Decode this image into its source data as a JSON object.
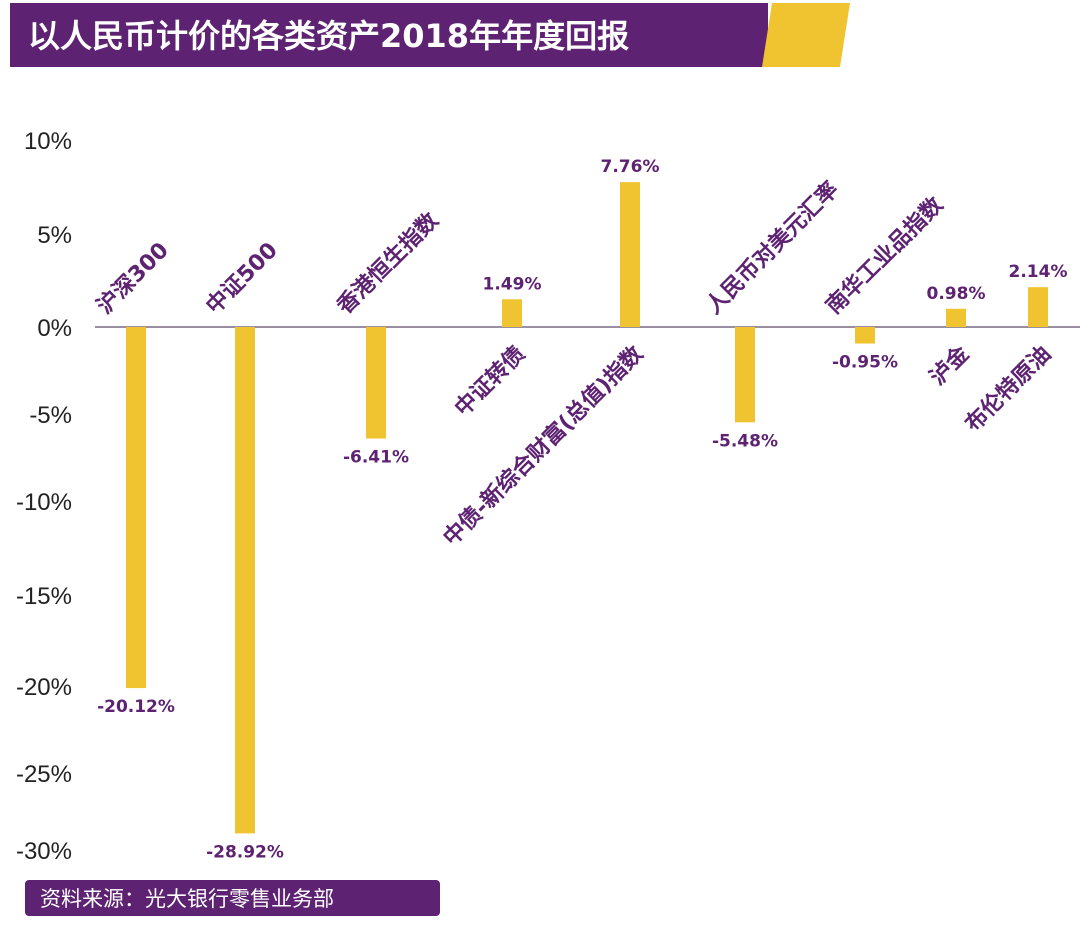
{
  "header": {
    "title": "以人民币计价的各类资产2018年年度回报"
  },
  "footer": {
    "source": "资料来源：光大银行零售业务部"
  },
  "colors": {
    "purple": "#5d2271",
    "bar": "#f0c330",
    "axis": "#9a8fa0"
  },
  "chart_data": {
    "type": "bar",
    "title": "以人民币计价的各类资产2018年年度回报",
    "categories": [
      "沪深300",
      "中证500",
      "香港恒生指数",
      "中证转债",
      "中债-新综合财富(总值)指数",
      "人民币对美元汇率",
      "南华工业品指数",
      "泸金",
      "布伦特原油"
    ],
    "values": [
      -20.12,
      -28.92,
      -6.41,
      1.49,
      7.76,
      -5.48,
      -0.95,
      0.98,
      2.14
    ],
    "value_labels": [
      "-20.12%",
      "-28.92%",
      "-6.41%",
      "1.49%",
      "7.76%",
      "-5.48%",
      "-0.95%",
      "0.98%",
      "2.14%"
    ],
    "yticks": [
      "10%",
      "5%",
      "0%",
      "-5%",
      "-10%",
      "-15%",
      "-20%",
      "-25%",
      "-30%"
    ],
    "ylim": [
      -30,
      10
    ],
    "grid": false,
    "xlabel": "",
    "ylabel": ""
  }
}
